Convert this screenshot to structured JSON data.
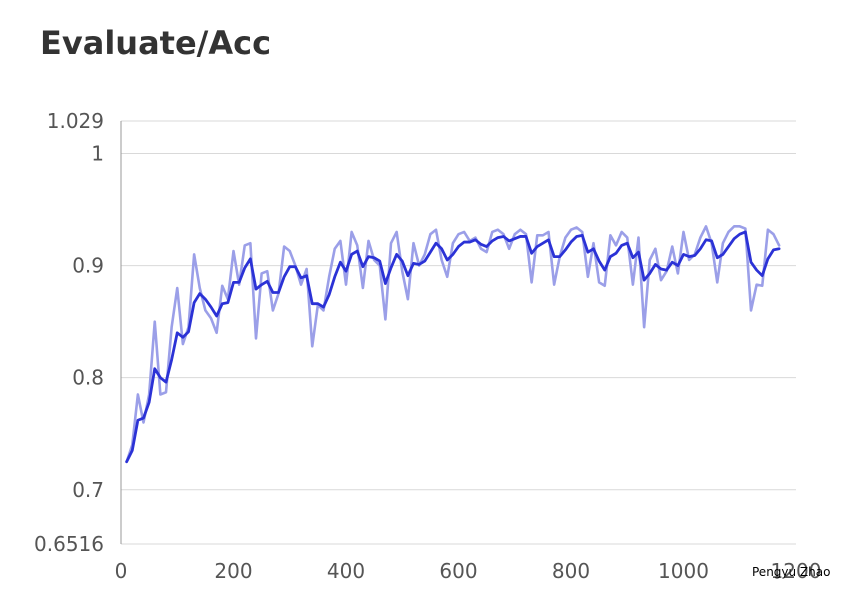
{
  "chart_data": {
    "type": "line",
    "title": "Evaluate/Acc",
    "xlabel": "",
    "ylabel": "",
    "xlim": [
      0,
      1200
    ],
    "ylim": [
      0.6516,
      1.029
    ],
    "x_ticks": [
      0,
      200,
      400,
      600,
      800,
      1000,
      1200
    ],
    "y_ticks": [
      0.6516,
      0.7,
      0.8,
      0.9,
      1,
      1.029
    ],
    "grid": true,
    "legend": "none",
    "colors": {
      "raw": "#9b9fe8",
      "smoothed": "#2b32d6",
      "grid": "#d9d9d9",
      "axis": "#999999"
    },
    "x": [
      10,
      20,
      30,
      40,
      50,
      60,
      70,
      80,
      90,
      100,
      110,
      120,
      130,
      140,
      150,
      160,
      170,
      180,
      190,
      200,
      210,
      220,
      230,
      240,
      250,
      260,
      270,
      280,
      290,
      300,
      310,
      320,
      330,
      340,
      350,
      360,
      370,
      380,
      390,
      400,
      410,
      420,
      430,
      440,
      450,
      460,
      470,
      480,
      490,
      500,
      510,
      520,
      530,
      540,
      550,
      560,
      570,
      580,
      590,
      600,
      610,
      620,
      630,
      640,
      650,
      660,
      670,
      680,
      690,
      700,
      710,
      720,
      730,
      740,
      750,
      760,
      770,
      780,
      790,
      800,
      810,
      820,
      830,
      840,
      850,
      860,
      870,
      880,
      890,
      900,
      910,
      920,
      930,
      940,
      950,
      960,
      970,
      980,
      990,
      1000,
      1010,
      1020,
      1030,
      1040,
      1050,
      1060,
      1070,
      1080,
      1090,
      1100,
      1110,
      1120,
      1130,
      1140,
      1150,
      1160,
      1170
    ],
    "series": [
      {
        "values": [
          0.725,
          0.74,
          0.785,
          0.76,
          0.785,
          0.85,
          0.785,
          0.787,
          0.845,
          0.88,
          0.83,
          0.845,
          0.91,
          0.88,
          0.86,
          0.853,
          0.84,
          0.882,
          0.87,
          0.913,
          0.883,
          0.918,
          0.92,
          0.835,
          0.893,
          0.895,
          0.86,
          0.875,
          0.917,
          0.913,
          0.9,
          0.883,
          0.897,
          0.828,
          0.865,
          0.86,
          0.89,
          0.915,
          0.922,
          0.883,
          0.93,
          0.918,
          0.88,
          0.922,
          0.905,
          0.9,
          0.852,
          0.92,
          0.93,
          0.895,
          0.87,
          0.92,
          0.9,
          0.91,
          0.928,
          0.932,
          0.905,
          0.89,
          0.92,
          0.928,
          0.93,
          0.922,
          0.925,
          0.915,
          0.912,
          0.93,
          0.932,
          0.928,
          0.915,
          0.928,
          0.932,
          0.928,
          0.885,
          0.927,
          0.927,
          0.93,
          0.883,
          0.908,
          0.925,
          0.932,
          0.934,
          0.93,
          0.89,
          0.92,
          0.885,
          0.882,
          0.927,
          0.918,
          0.93,
          0.925,
          0.883,
          0.925,
          0.845,
          0.905,
          0.915,
          0.887,
          0.895,
          0.917,
          0.893,
          0.93,
          0.905,
          0.91,
          0.925,
          0.935,
          0.92,
          0.885,
          0.92,
          0.93,
          0.935,
          0.935,
          0.933,
          0.86,
          0.883,
          0.882,
          0.932,
          0.928,
          0.918
        ]
      },
      {
        "values": [
          0.725,
          0.735,
          0.762,
          0.764,
          0.778,
          0.808,
          0.8,
          0.796,
          0.816,
          0.84,
          0.836,
          0.841,
          0.867,
          0.875,
          0.87,
          0.863,
          0.855,
          0.866,
          0.867,
          0.885,
          0.885,
          0.898,
          0.906,
          0.879,
          0.883,
          0.886,
          0.876,
          0.876,
          0.89,
          0.899,
          0.899,
          0.889,
          0.891,
          0.866,
          0.866,
          0.863,
          0.874,
          0.89,
          0.903,
          0.895,
          0.91,
          0.913,
          0.899,
          0.908,
          0.907,
          0.904,
          0.884,
          0.898,
          0.91,
          0.904,
          0.891,
          0.902,
          0.901,
          0.904,
          0.912,
          0.92,
          0.915,
          0.905,
          0.91,
          0.917,
          0.921,
          0.921,
          0.923,
          0.919,
          0.917,
          0.922,
          0.925,
          0.926,
          0.922,
          0.924,
          0.926,
          0.926,
          0.911,
          0.917,
          0.92,
          0.923,
          0.908,
          0.908,
          0.914,
          0.921,
          0.926,
          0.927,
          0.912,
          0.915,
          0.904,
          0.896,
          0.908,
          0.911,
          0.918,
          0.92,
          0.907,
          0.912,
          0.887,
          0.893,
          0.901,
          0.897,
          0.896,
          0.903,
          0.9,
          0.91,
          0.908,
          0.909,
          0.915,
          0.923,
          0.922,
          0.907,
          0.91,
          0.917,
          0.924,
          0.928,
          0.93,
          0.903,
          0.896,
          0.891,
          0.906,
          0.914,
          0.915
        ]
      }
    ]
  },
  "watermark": "Pengyu  Zhao"
}
